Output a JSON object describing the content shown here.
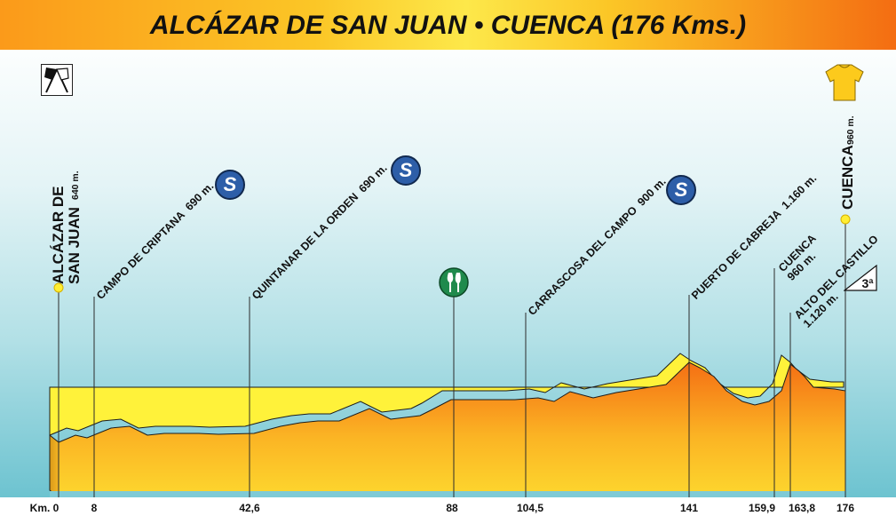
{
  "title": "ALCÁZAR DE SAN JUAN • CUENCA (176 Kms.)",
  "colors": {
    "profile_fill_top": "#fdd72e",
    "profile_fill_bottom": "#f56f14",
    "road_surface": "#fff23a",
    "sprint_badge": "#2d5ea8",
    "feed_zone_badge": "#1f8a4c",
    "finish_jersey": "#fcca1c"
  },
  "icons": {
    "start": "start-flags-icon",
    "finish": "yellow-jersey-icon",
    "sprint": "sprint-s-icon",
    "feed_zone": "feed-zone-icon",
    "climb": "category-climb-icon"
  },
  "start_label": {
    "line1": "ALCÁZAR DE",
    "line2": "SAN JUAN",
    "altitude": "640 m."
  },
  "finish_label": {
    "name": "CUENCA",
    "altitude": "960 m."
  },
  "points": [
    {
      "name": "CAMPO DE CRIPTANA",
      "altitude": "690 m.",
      "km": "8",
      "sprint": true
    },
    {
      "name": "QUINTANAR DE LA ORDEN",
      "altitude": "690 m.",
      "km": "42,6",
      "sprint": true
    },
    {
      "name": "",
      "altitude": "",
      "km": "88",
      "feed_zone": true
    },
    {
      "name": "CARRASCOSA DEL CAMPO",
      "altitude": "900 m.",
      "km": "104,5",
      "sprint": true
    },
    {
      "name": "PUERTO DE CABREJA",
      "altitude": "1.160 m.",
      "km": "141"
    },
    {
      "name": "CUENCA",
      "altitude": "960 m.",
      "km": "159,9"
    },
    {
      "name": "ALTO DEL CASTILLO",
      "altitude": "1.120 m.",
      "km": "163,8",
      "climb_category": "3ª"
    }
  ],
  "km_start": "Km. 0",
  "km_finish": "176",
  "sprint_letter": "S",
  "climb_category": "3ª"
}
